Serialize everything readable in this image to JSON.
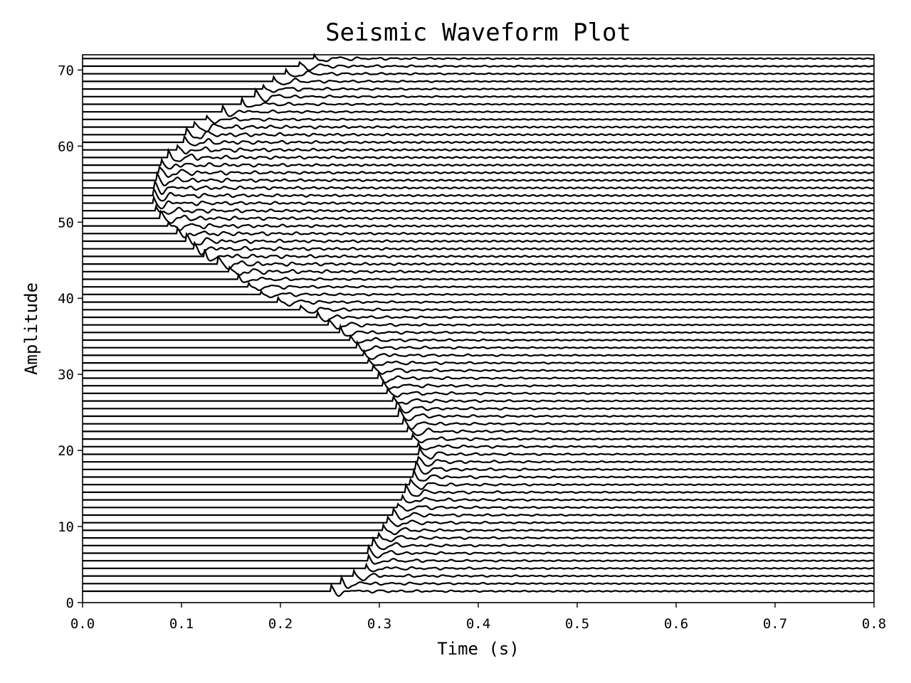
{
  "chart_data": {
    "type": "line",
    "title": "Seismic Waveform Plot",
    "xlabel": "Time (s)",
    "ylabel": "Amplitude",
    "xlim": [
      0.0,
      0.8
    ],
    "ylim": [
      0,
      72
    ],
    "xticks": [
      "0.0",
      "0.1",
      "0.2",
      "0.3",
      "0.4",
      "0.5",
      "0.6",
      "0.7",
      "0.8"
    ],
    "yticks": [
      "0",
      "10",
      "20",
      "30",
      "40",
      "50",
      "60",
      "70"
    ],
    "grid": false,
    "legend": "none",
    "trace_color": "#000000",
    "trace_count": 71,
    "trace_offsets_start": 1.5,
    "trace_offsets_step": 1.0,
    "first_arrival_times": [
      [
        1.5,
        0.255
      ],
      [
        3.0,
        0.27
      ],
      [
        4.0,
        0.285
      ],
      [
        5.0,
        0.295
      ],
      [
        6.0,
        0.29
      ],
      [
        8.0,
        0.3
      ],
      [
        10.0,
        0.31
      ],
      [
        12.0,
        0.32
      ],
      [
        15.0,
        0.333
      ],
      [
        17.0,
        0.34
      ],
      [
        20.0,
        0.345
      ],
      [
        22.0,
        0.335
      ],
      [
        24.0,
        0.325
      ],
      [
        26.0,
        0.32
      ],
      [
        28.0,
        0.31
      ],
      [
        30.0,
        0.3
      ],
      [
        33.0,
        0.285
      ],
      [
        35.0,
        0.27
      ],
      [
        38.0,
        0.235
      ],
      [
        40.0,
        0.19
      ],
      [
        42.0,
        0.165
      ],
      [
        44.0,
        0.148
      ],
      [
        46.0,
        0.12
      ],
      [
        48.0,
        0.105
      ],
      [
        50.0,
        0.085
      ],
      [
        52.0,
        0.075
      ],
      [
        54.0,
        0.075
      ],
      [
        56.0,
        0.08
      ],
      [
        58.0,
        0.085
      ],
      [
        60.0,
        0.105
      ],
      [
        62.0,
        0.11
      ],
      [
        64.0,
        0.135
      ],
      [
        66.0,
        0.175
      ],
      [
        68.0,
        0.19
      ],
      [
        70.0,
        0.215
      ],
      [
        72.0,
        0.245
      ]
    ]
  }
}
